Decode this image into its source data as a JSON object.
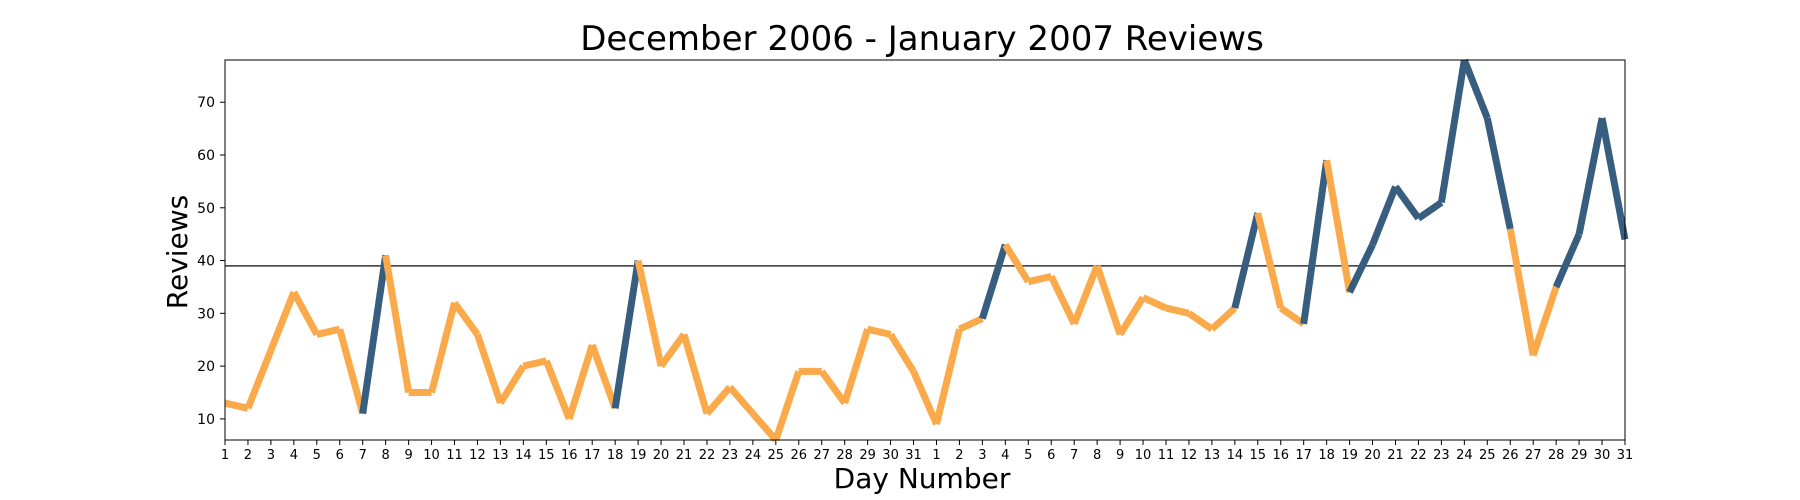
{
  "chart_data": {
    "type": "line",
    "title": "December 2006 - January 2007 Reviews",
    "xlabel": "Day Number",
    "ylabel": "Reviews",
    "ylim": [
      6,
      78
    ],
    "yticks": [
      10,
      20,
      30,
      40,
      50,
      60,
      70
    ],
    "threshold": 39,
    "grid": false,
    "legend": "none",
    "colors": {
      "below": "#fbaa4b",
      "above": "#375e7f",
      "threshold": "#333333"
    },
    "categories": [
      "1",
      "2",
      "3",
      "4",
      "5",
      "6",
      "7",
      "8",
      "9",
      "10",
      "11",
      "12",
      "13",
      "14",
      "15",
      "16",
      "17",
      "18",
      "19",
      "20",
      "21",
      "22",
      "23",
      "24",
      "25",
      "26",
      "27",
      "28",
      "29",
      "30",
      "31",
      "1",
      "2",
      "3",
      "4",
      "5",
      "6",
      "7",
      "8",
      "9",
      "10",
      "11",
      "12",
      "13",
      "14",
      "15",
      "16",
      "17",
      "18",
      "19",
      "20",
      "21",
      "22",
      "23",
      "24",
      "25",
      "26",
      "27",
      "28",
      "29",
      "30",
      "31"
    ],
    "series": [
      {
        "values": [
          13,
          12,
          23,
          34,
          26,
          27,
          11,
          41,
          15,
          15,
          32,
          26,
          13,
          20,
          21,
          10,
          24,
          12,
          40,
          20,
          26,
          11,
          16,
          11,
          6,
          19,
          19,
          13,
          27,
          26,
          19,
          9,
          27,
          29,
          43,
          36,
          37,
          28,
          39,
          26,
          33,
          31,
          30,
          27,
          31,
          49,
          31,
          28,
          59,
          34,
          43,
          54,
          48,
          51,
          78,
          67,
          46,
          22,
          35,
          45,
          67,
          44
        ]
      }
    ]
  }
}
